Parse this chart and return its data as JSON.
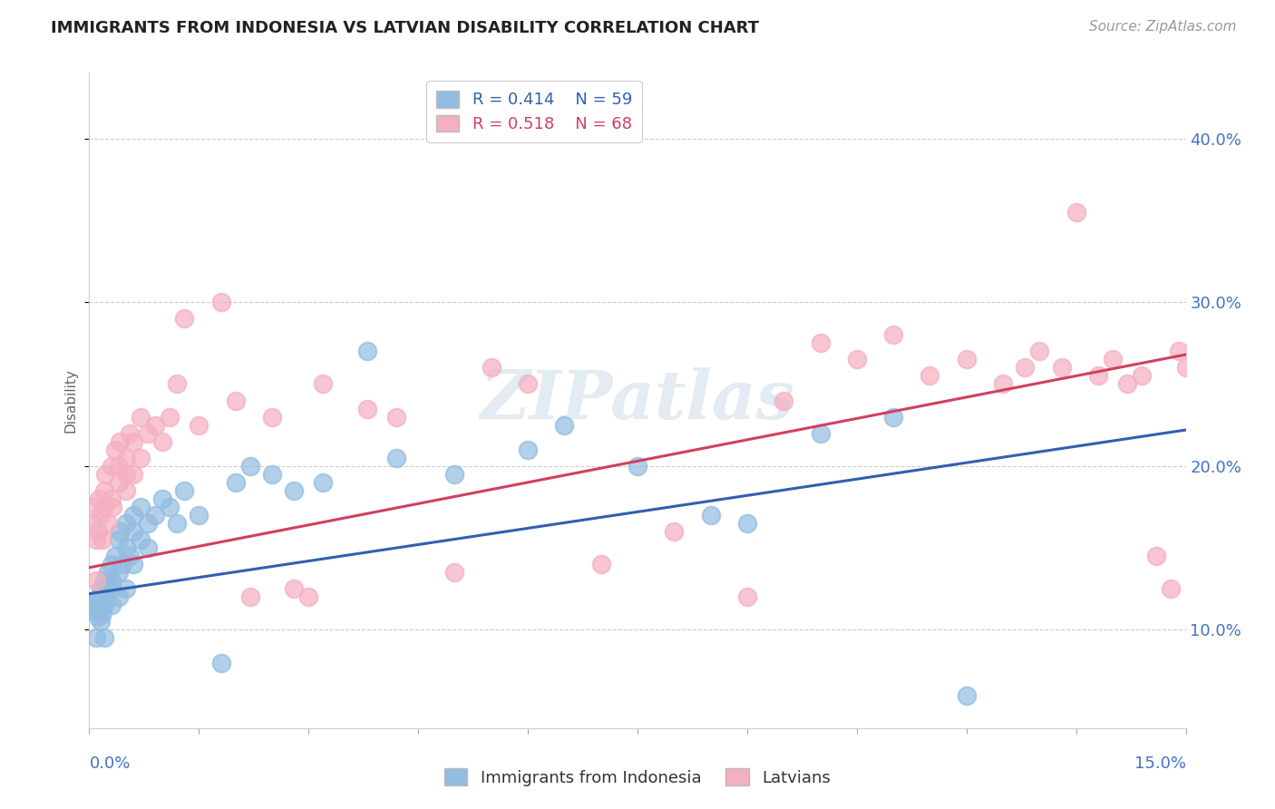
{
  "title": "IMMIGRANTS FROM INDONESIA VS LATVIAN DISABILITY CORRELATION CHART",
  "source": "Source: ZipAtlas.com",
  "ylabel": "Disability",
  "ylabel_right_ticks": [
    "10.0%",
    "20.0%",
    "30.0%",
    "40.0%"
  ],
  "ylabel_right_vals": [
    0.1,
    0.2,
    0.3,
    0.4
  ],
  "xlim": [
    0.0,
    0.15
  ],
  "ylim": [
    0.04,
    0.44
  ],
  "blue_R": 0.414,
  "blue_N": 59,
  "pink_R": 0.518,
  "pink_N": 68,
  "blue_color": "#92bce0",
  "pink_color": "#f4afc0",
  "blue_line_color": "#3060b0",
  "pink_line_color": "#d04060",
  "legend_label_blue": "Immigrants from Indonesia",
  "legend_label_pink": "Latvians",
  "background_color": "#ffffff",
  "grid_color": "#cccccc",
  "watermark": "ZIPatlas",
  "blue_trend_x0": 0.0,
  "blue_trend_y0": 0.122,
  "blue_trend_x1": 0.15,
  "blue_trend_y1": 0.222,
  "pink_trend_x0": 0.0,
  "pink_trend_y0": 0.138,
  "pink_trend_x1": 0.15,
  "pink_trend_y1": 0.268,
  "blue_scatter_x": [
    0.0005,
    0.0008,
    0.001,
    0.001,
    0.0012,
    0.0013,
    0.0015,
    0.0015,
    0.0018,
    0.002,
    0.002,
    0.002,
    0.0022,
    0.0025,
    0.0025,
    0.003,
    0.003,
    0.003,
    0.0032,
    0.0035,
    0.004,
    0.004,
    0.004,
    0.0042,
    0.0045,
    0.005,
    0.005,
    0.005,
    0.0055,
    0.006,
    0.006,
    0.006,
    0.007,
    0.007,
    0.008,
    0.008,
    0.009,
    0.01,
    0.011,
    0.012,
    0.013,
    0.015,
    0.018,
    0.02,
    0.022,
    0.025,
    0.028,
    0.032,
    0.038,
    0.042,
    0.05,
    0.06,
    0.065,
    0.075,
    0.085,
    0.09,
    0.1,
    0.11,
    0.12
  ],
  "blue_scatter_y": [
    0.115,
    0.118,
    0.095,
    0.112,
    0.108,
    0.12,
    0.125,
    0.105,
    0.11,
    0.13,
    0.115,
    0.095,
    0.118,
    0.125,
    0.135,
    0.13,
    0.115,
    0.14,
    0.125,
    0.145,
    0.135,
    0.155,
    0.12,
    0.16,
    0.14,
    0.15,
    0.165,
    0.125,
    0.145,
    0.16,
    0.17,
    0.14,
    0.155,
    0.175,
    0.165,
    0.15,
    0.17,
    0.18,
    0.175,
    0.165,
    0.185,
    0.17,
    0.08,
    0.19,
    0.2,
    0.195,
    0.185,
    0.19,
    0.27,
    0.205,
    0.195,
    0.21,
    0.225,
    0.2,
    0.17,
    0.165,
    0.22,
    0.23,
    0.06
  ],
  "pink_scatter_x": [
    0.0005,
    0.0007,
    0.001,
    0.001,
    0.0012,
    0.0013,
    0.0015,
    0.0018,
    0.002,
    0.002,
    0.0022,
    0.0025,
    0.003,
    0.003,
    0.0032,
    0.0035,
    0.004,
    0.004,
    0.0042,
    0.005,
    0.005,
    0.005,
    0.0055,
    0.006,
    0.006,
    0.007,
    0.007,
    0.008,
    0.009,
    0.01,
    0.011,
    0.012,
    0.013,
    0.015,
    0.018,
    0.02,
    0.022,
    0.025,
    0.028,
    0.03,
    0.032,
    0.038,
    0.042,
    0.05,
    0.055,
    0.06,
    0.07,
    0.08,
    0.09,
    0.095,
    0.1,
    0.105,
    0.11,
    0.115,
    0.12,
    0.125,
    0.128,
    0.13,
    0.133,
    0.135,
    0.138,
    0.14,
    0.142,
    0.144,
    0.146,
    0.148,
    0.149,
    0.15
  ],
  "pink_scatter_y": [
    0.165,
    0.175,
    0.13,
    0.155,
    0.16,
    0.18,
    0.17,
    0.155,
    0.175,
    0.185,
    0.195,
    0.165,
    0.18,
    0.2,
    0.175,
    0.21,
    0.19,
    0.2,
    0.215,
    0.195,
    0.205,
    0.185,
    0.22,
    0.195,
    0.215,
    0.205,
    0.23,
    0.22,
    0.225,
    0.215,
    0.23,
    0.25,
    0.29,
    0.225,
    0.3,
    0.24,
    0.12,
    0.23,
    0.125,
    0.12,
    0.25,
    0.235,
    0.23,
    0.135,
    0.26,
    0.25,
    0.14,
    0.16,
    0.12,
    0.24,
    0.275,
    0.265,
    0.28,
    0.255,
    0.265,
    0.25,
    0.26,
    0.27,
    0.26,
    0.355,
    0.255,
    0.265,
    0.25,
    0.255,
    0.145,
    0.125,
    0.27,
    0.26
  ]
}
